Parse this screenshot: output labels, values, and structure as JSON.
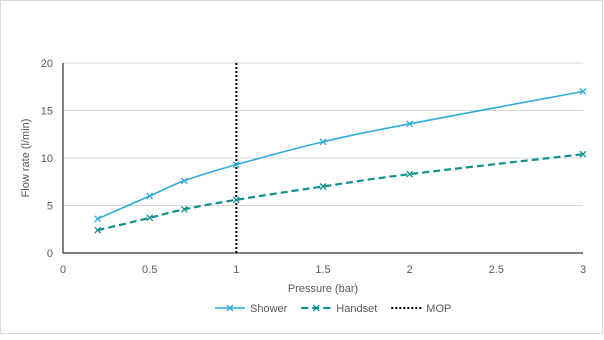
{
  "chart_data": {
    "type": "line",
    "title": "",
    "xlabel": "Pressure (bar)",
    "ylabel": "Flow rate (l/min)",
    "xlim": [
      0,
      3
    ],
    "ylim": [
      0,
      20
    ],
    "x_ticks": [
      "0",
      "0.5",
      "1",
      "1.5",
      "2",
      "2.5",
      "3"
    ],
    "y_ticks": [
      "0",
      "5",
      "10",
      "15",
      "20"
    ],
    "grid": "horizontal",
    "legend_position": "bottom",
    "series": [
      {
        "name": "Shower",
        "color": "#2eaadc",
        "line_style": "solid",
        "marker": "x",
        "x": [
          0.2,
          0.5,
          0.7,
          1.0,
          1.5,
          2.0,
          3.0
        ],
        "y": [
          3.6,
          6.0,
          7.6,
          9.3,
          11.7,
          13.6,
          17.0
        ]
      },
      {
        "name": "Handset",
        "color": "#138f8f",
        "line_style": "dashed",
        "marker": "x",
        "x": [
          0.2,
          0.5,
          0.7,
          1.0,
          1.5,
          2.0,
          3.0
        ],
        "y": [
          2.4,
          3.7,
          4.6,
          5.6,
          7.0,
          8.3,
          10.4
        ]
      }
    ],
    "reference_line": {
      "name": "MOP",
      "color": "#000000",
      "line_style": "dotted",
      "x": 1.0
    }
  }
}
